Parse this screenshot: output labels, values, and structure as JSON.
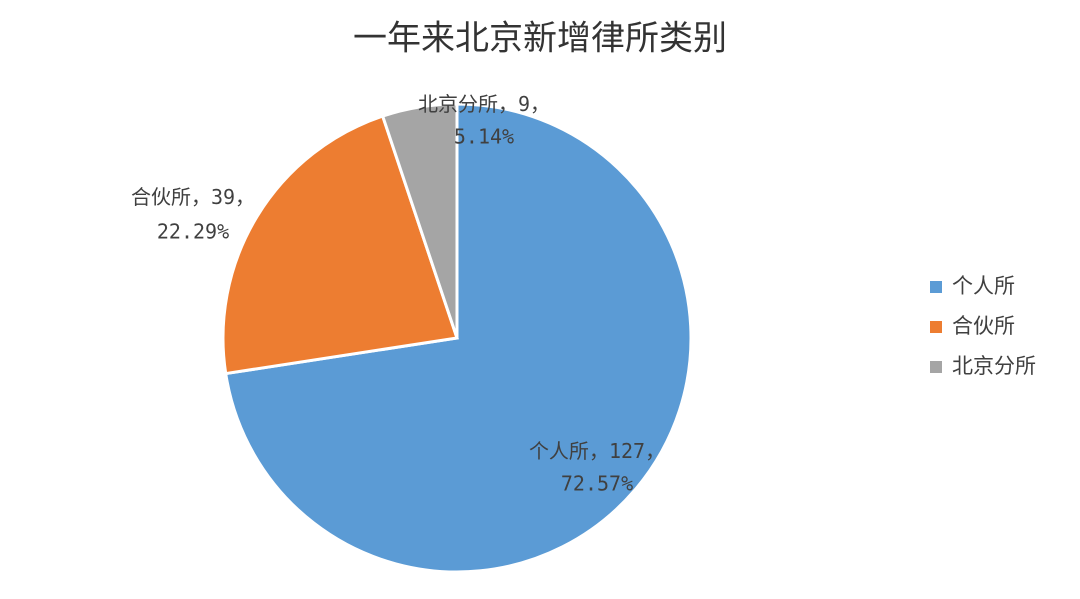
{
  "chart_data": {
    "type": "pie",
    "title": "一年来北京新增律所类别",
    "categories": [
      "个人所",
      "合伙所",
      "北京分所"
    ],
    "values": [
      127,
      39,
      9
    ],
    "percentages": [
      72.57,
      22.29,
      5.14
    ],
    "percentage_labels": [
      "72.57%",
      "22.29%",
      "5.14%"
    ],
    "label_separator": "，",
    "colors": [
      "#5b9bd5",
      "#ed7d31",
      "#a5a5a5"
    ],
    "legend": "right"
  }
}
